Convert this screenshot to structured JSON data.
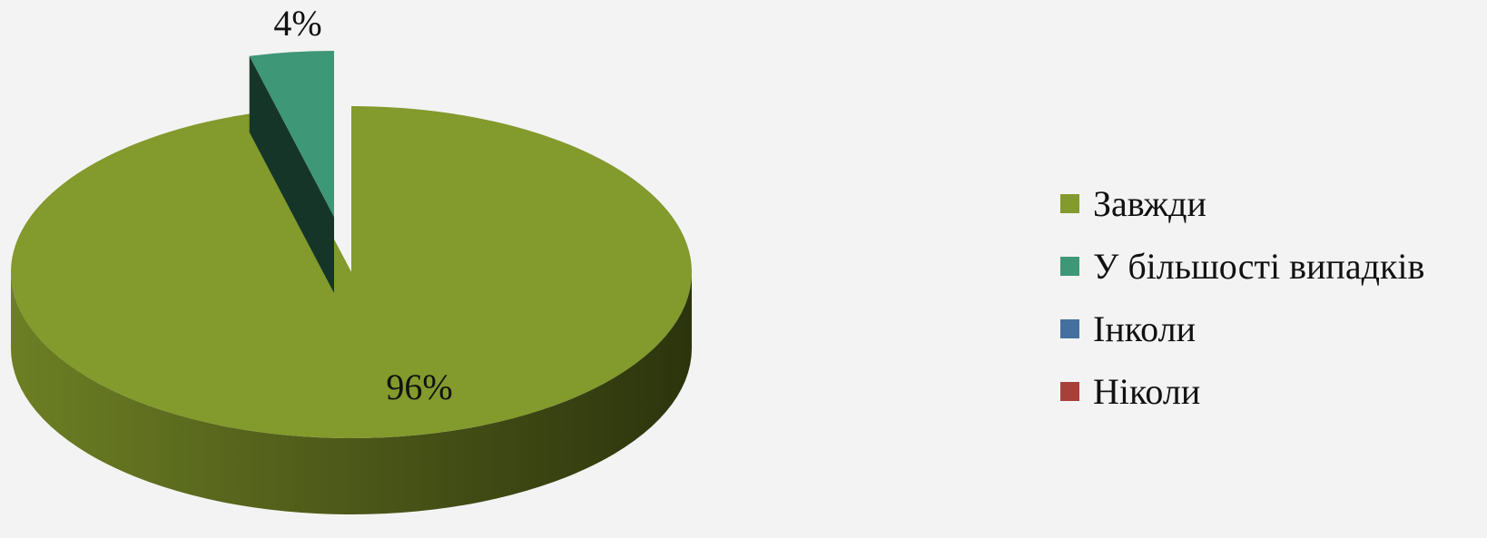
{
  "chart_data": {
    "type": "pie",
    "categories": [
      "Завжди",
      "У більшості випадків",
      "Інколи",
      "Ніколи"
    ],
    "values": [
      96,
      4,
      0,
      0
    ],
    "data_labels": [
      "96%",
      "4%",
      "",
      ""
    ],
    "colors": [
      "#839a2c",
      "#3e9776",
      "#4470a0",
      "#a8403a"
    ],
    "legend_position": "right",
    "title": ""
  }
}
